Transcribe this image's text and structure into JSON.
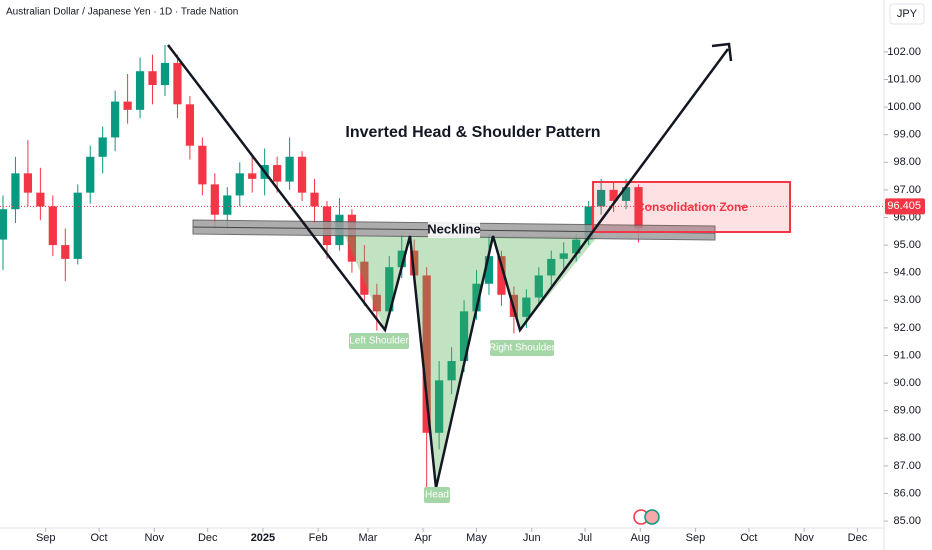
{
  "chart_data": {
    "type": "candlestick",
    "title": "Australian Dollar / Japanese Yen · 1D · Trade Nation",
    "currency": "JPY",
    "up_color": "#089981",
    "down_color": "#f23645",
    "categories": [
      null,
      null,
      null,
      null,
      null,
      null,
      null,
      null,
      null,
      null,
      null,
      null,
      null,
      null,
      null,
      null,
      null,
      null,
      null,
      null,
      null,
      null,
      null,
      null,
      null,
      null,
      null,
      null,
      null,
      null,
      null,
      null,
      null,
      null,
      null,
      null,
      null,
      null,
      null,
      null,
      null,
      null,
      null,
      null,
      null,
      null,
      null,
      null,
      null,
      null,
      null,
      null
    ],
    "open": [
      95.2,
      96.3,
      97.6,
      96.9,
      96.4,
      95.0,
      94.5,
      96.9,
      98.2,
      98.9,
      100.2,
      99.9,
      101.3,
      100.8,
      101.6,
      100.1,
      98.6,
      97.2,
      96.1,
      96.8,
      97.6,
      97.4,
      97.9,
      97.3,
      98.2,
      96.9,
      96.4,
      95.0,
      96.1,
      94.4,
      93.2,
      92.6,
      94.2,
      94.8,
      93.9,
      88.2,
      90.1,
      90.8,
      92.6,
      93.6,
      94.6,
      93.2,
      92.4,
      93.1,
      93.9,
      94.5,
      94.7,
      95.2,
      96.4,
      97.0,
      96.6,
      97.1
    ],
    "high": [
      96.8,
      98.2,
      98.8,
      97.8,
      96.8,
      95.6,
      97.2,
      98.6,
      99.3,
      100.6,
      101.2,
      101.8,
      101.9,
      102.25,
      101.9,
      100.4,
      98.9,
      97.6,
      97.1,
      98.0,
      98.2,
      98.5,
      98.2,
      98.9,
      98.4,
      97.4,
      96.6,
      96.7,
      96.3,
      95.0,
      93.6,
      94.6,
      95.4,
      95.2,
      94.2,
      90.8,
      91.3,
      93.0,
      94.1,
      95.4,
      94.8,
      93.5,
      93.4,
      94.2,
      94.8,
      95.1,
      95.4,
      96.6,
      97.4,
      97.3,
      97.4,
      97.2
    ],
    "low": [
      94.1,
      95.8,
      96.4,
      95.9,
      94.6,
      93.7,
      94.3,
      96.5,
      97.6,
      98.4,
      99.4,
      99.6,
      100.1,
      100.4,
      99.6,
      98.1,
      96.8,
      95.6,
      95.6,
      96.4,
      96.9,
      96.8,
      96.9,
      97.0,
      96.6,
      95.8,
      94.5,
      94.8,
      94.0,
      92.8,
      91.9,
      92.4,
      93.8,
      93.6,
      86.1,
      87.6,
      89.6,
      90.4,
      92.3,
      93.2,
      92.8,
      91.8,
      92.0,
      92.8,
      93.5,
      94.1,
      94.4,
      95.0,
      96.1,
      96.2,
      96.3,
      95.1
    ],
    "close": [
      96.3,
      97.6,
      96.9,
      96.4,
      95.0,
      94.5,
      96.9,
      98.2,
      98.9,
      100.2,
      99.9,
      101.3,
      100.8,
      101.6,
      100.1,
      98.6,
      97.2,
      96.1,
      96.8,
      97.6,
      97.4,
      97.9,
      97.3,
      98.2,
      96.9,
      96.4,
      95.0,
      96.1,
      94.4,
      93.2,
      92.6,
      94.2,
      94.8,
      93.9,
      88.2,
      90.1,
      90.8,
      92.6,
      93.6,
      94.6,
      93.2,
      92.4,
      93.1,
      93.9,
      94.5,
      94.7,
      95.2,
      96.4,
      97.0,
      96.6,
      97.1,
      95.6
    ],
    "last_price": 96.405,
    "xlim": [
      -0.24,
      70.7
    ],
    "xticks": [
      {
        "value": 3.43,
        "label": "Sep"
      },
      {
        "value": 7.71,
        "label": "Oct"
      },
      {
        "value": 12.14,
        "label": "Nov"
      },
      {
        "value": 16.43,
        "label": "Dec"
      },
      {
        "value": 20.86,
        "label": "2025"
      },
      {
        "value": 25.29,
        "label": "Feb"
      },
      {
        "value": 29.29,
        "label": "Mar"
      },
      {
        "value": 33.71,
        "label": "Apr"
      },
      {
        "value": 38,
        "label": "May"
      },
      {
        "value": 42.43,
        "label": "Jun"
      },
      {
        "value": 46.71,
        "label": "Jul"
      },
      {
        "value": 51.14,
        "label": "Aug"
      },
      {
        "value": 55.57,
        "label": "Sep"
      },
      {
        "value": 59.86,
        "label": "Oct"
      },
      {
        "value": 64.29,
        "label": "Nov"
      },
      {
        "value": 68.57,
        "label": "Dec"
      }
    ],
    "ylim": [
      84.75,
      103.88
    ],
    "yticks": [
      {
        "value": 85,
        "label": "85.00"
      },
      {
        "value": 86,
        "label": "86.00"
      },
      {
        "value": 87,
        "label": "87.00"
      },
      {
        "value": 88,
        "label": "88.00"
      },
      {
        "value": 89,
        "label": "89.00"
      },
      {
        "value": 90,
        "label": "90.00"
      },
      {
        "value": 91,
        "label": "91.00"
      },
      {
        "value": 92,
        "label": "92.00"
      },
      {
        "value": 93,
        "label": "93.00"
      },
      {
        "value": 94,
        "label": "94.00"
      },
      {
        "value": 95,
        "label": "95.00"
      },
      {
        "value": 96,
        "label": "96.00"
      },
      {
        "value": 97,
        "label": "97.00"
      },
      {
        "value": 98,
        "label": "98.00"
      },
      {
        "value": 99,
        "label": "99.00"
      },
      {
        "value": 100,
        "label": "100.00"
      },
      {
        "value": 101,
        "label": "101.00"
      },
      {
        "value": 102,
        "label": "102.00"
      }
    ],
    "annotations": {
      "pattern_title": "Inverted Head & Shoulder Pattern",
      "neckline": "Neckline",
      "left_shoulder": "Left Shoulder",
      "head": "Head",
      "right_shoulder": "Right Shoulder",
      "consolidation_zone": "Consolidation Zone"
    }
  }
}
